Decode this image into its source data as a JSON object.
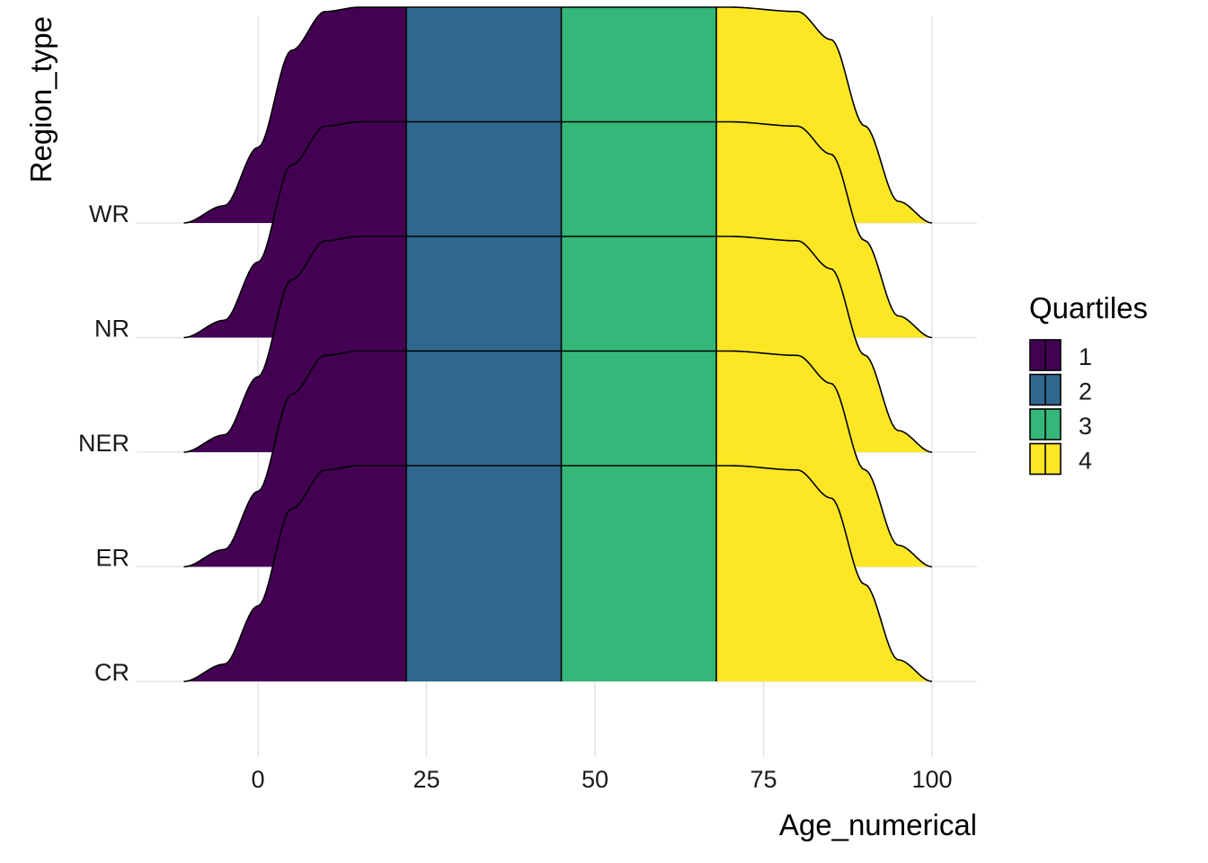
{
  "chart_data": {
    "type": "density_ridges",
    "xlabel": "Age_numerical",
    "ylabel": "Region_type",
    "xlim": [
      -12,
      100
    ],
    "x_ticks": [
      0,
      25,
      50,
      75,
      100
    ],
    "categories": [
      "CR",
      "ER",
      "NER",
      "NR",
      "WR"
    ],
    "quantile_breaks": [
      22,
      45,
      68
    ],
    "legend": {
      "title": "Quartiles",
      "position": "right",
      "items": [
        {
          "label": "1",
          "color": "#440154"
        },
        {
          "label": "2",
          "color": "#31688E"
        },
        {
          "label": "3",
          "color": "#35B779"
        },
        {
          "label": "4",
          "color": "#FDE725"
        }
      ]
    },
    "density_curve": {
      "x": [
        -11,
        -5,
        0,
        5,
        10,
        15,
        20,
        30,
        40,
        50,
        60,
        70,
        80,
        85,
        90,
        95,
        100
      ],
      "y": [
        0,
        0.08,
        0.35,
        0.8,
        0.98,
        1,
        1,
        1,
        1,
        1,
        1,
        1,
        0.98,
        0.85,
        0.45,
        0.1,
        0
      ]
    },
    "grid": true
  }
}
